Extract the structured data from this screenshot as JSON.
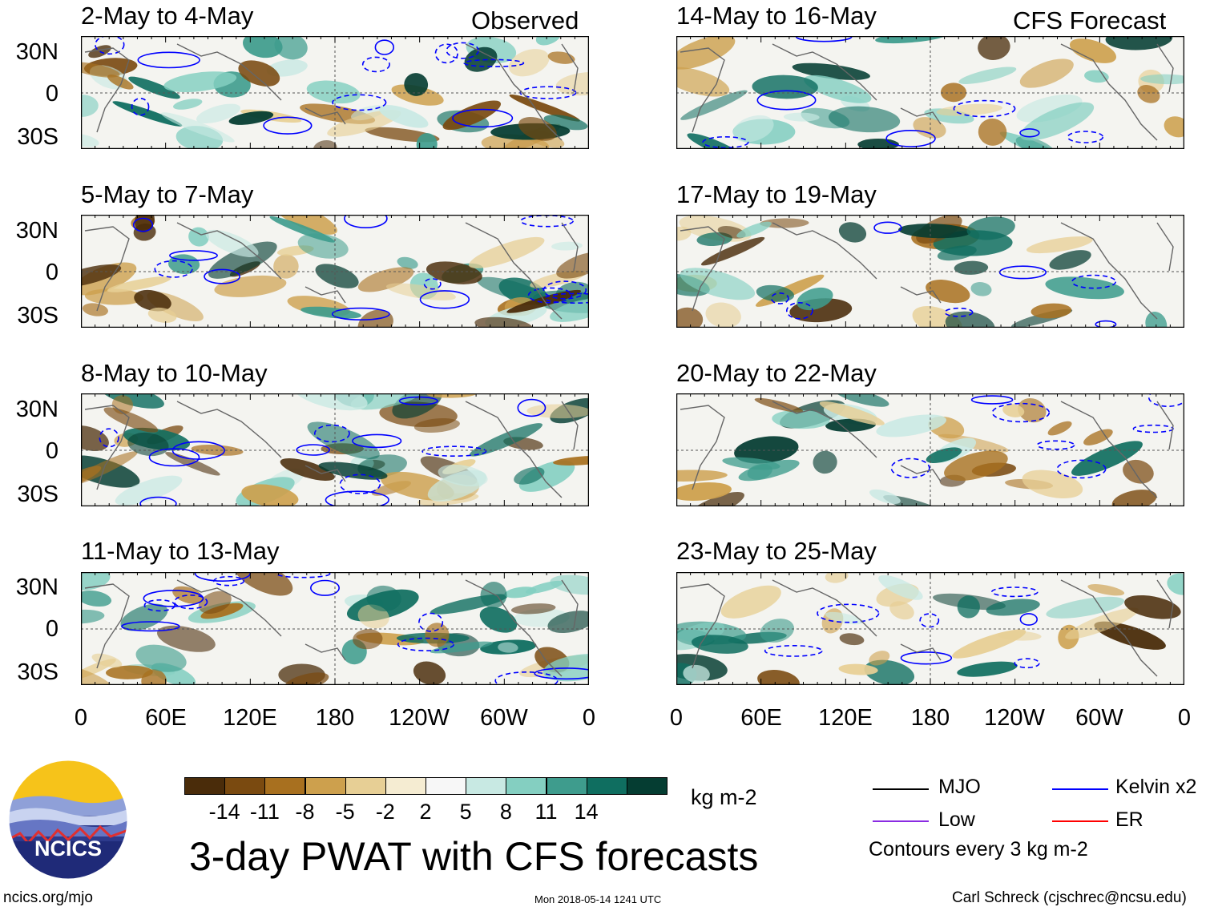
{
  "header": {
    "observed_label": "Observed",
    "forecast_label": "CFS Forecast"
  },
  "panels": {
    "left": [
      {
        "title": "2-May to 4-May"
      },
      {
        "title": "5-May to 7-May"
      },
      {
        "title": "8-May to 10-May"
      },
      {
        "title": "11-May to 13-May"
      }
    ],
    "right": [
      {
        "title": "14-May to 16-May"
      },
      {
        "title": "17-May to 19-May"
      },
      {
        "title": "20-May to 22-May"
      },
      {
        "title": "23-May to 25-May"
      }
    ]
  },
  "axes": {
    "lat_labels": [
      "30N",
      "0",
      "30S"
    ],
    "lon_labels": [
      "0",
      "60E",
      "120E",
      "180",
      "120W",
      "60W",
      "0"
    ]
  },
  "colorbar": {
    "tick_labels": [
      "-14",
      "-11",
      "-8",
      "-5",
      "-2",
      "2",
      "5",
      "8",
      "11",
      "14"
    ],
    "units": "kg m-2",
    "colors": [
      "#4a2c0a",
      "#7a4a10",
      "#a8701f",
      "#cda04d",
      "#e7cf95",
      "#f5ecd2",
      "#f7f7f7",
      "#c8e9e3",
      "#84cfc1",
      "#3e9c8d",
      "#0f6e60",
      "#053d32"
    ]
  },
  "legend": {
    "mjo": {
      "label": "MJO",
      "color": "#000000"
    },
    "kelvin": {
      "label": "Kelvin x2",
      "color": "#0000ff"
    },
    "low": {
      "label": "Low",
      "color": "#8a2be2"
    },
    "er": {
      "label": "ER",
      "color": "#ff0000"
    },
    "contour_note": "Contours every 3 kg m-2"
  },
  "main_title": "3-day PWAT with CFS forecasts",
  "footer": {
    "site": "ncics.org/mjo",
    "timestamp": "Mon 2018-05-14 1241 UTC",
    "author": "Carl Schreck (cjschrec@ncsu.edu)"
  },
  "logo": {
    "text": "NCICS"
  }
}
